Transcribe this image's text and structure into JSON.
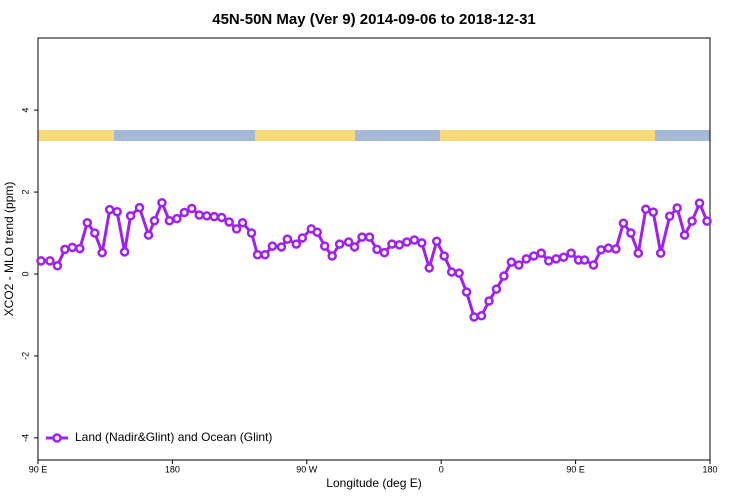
{
  "chart_data": {
    "type": "line",
    "title": "45N-50N May (Ver 9)   2014-09-06 to 2018-12-31",
    "x_label": "Longitude (deg E)",
    "y_label": "XCO2 - MLO trend (ppm)",
    "xlim": [
      90,
      540
    ],
    "xticks": [
      {
        "value": 90,
        "label": "90 E"
      },
      180,
      {
        "value": 270,
        "label": "90 W"
      },
      {
        "value": 360,
        "label": "0"
      },
      {
        "value": 450,
        "label": "90 E"
      },
      {
        "value": 540,
        "label": "180"
      }
    ],
    "ylim": [
      -4.54,
      5.76
    ],
    "yticks": [
      -4,
      -2,
      0,
      2,
      4
    ],
    "legend": "bottom-left",
    "x": [
      92,
      98,
      103,
      108,
      113,
      118,
      123,
      128,
      133,
      138,
      143,
      148,
      152,
      158,
      164,
      168,
      173,
      178,
      183,
      188,
      193,
      198,
      203,
      208,
      213,
      218,
      223,
      227,
      233,
      237,
      242,
      247,
      253,
      257,
      263,
      267,
      273,
      277,
      282,
      287,
      292,
      298,
      302,
      307,
      312,
      317,
      322,
      327,
      332,
      337,
      342,
      347,
      352,
      357,
      362,
      367,
      372,
      377,
      382,
      387,
      392,
      397,
      402,
      407,
      412,
      417,
      422,
      427,
      432,
      437,
      442,
      447,
      452,
      456,
      462,
      467,
      472,
      477,
      482,
      487,
      492,
      497,
      502,
      507,
      513,
      518,
      523,
      528,
      533,
      538
    ],
    "series": [
      {
        "name": "Land (Nadir&Glint) and Ocean (Glint)",
        "color": "#a020f0",
        "values": [
          0.32,
          0.32,
          0.2,
          0.6,
          0.65,
          0.62,
          1.25,
          1.0,
          0.52,
          1.57,
          1.52,
          0.54,
          1.42,
          1.62,
          0.95,
          1.3,
          1.74,
          1.3,
          1.35,
          1.5,
          1.6,
          1.44,
          1.42,
          1.4,
          1.38,
          1.27,
          1.1,
          1.25,
          1.0,
          0.47,
          0.47,
          0.68,
          0.66,
          0.85,
          0.73,
          0.88,
          1.1,
          1.02,
          0.68,
          0.44,
          0.73,
          0.78,
          0.66,
          0.9,
          0.9,
          0.6,
          0.52,
          0.73,
          0.71,
          0.78,
          0.83,
          0.76,
          0.15,
          0.8,
          0.44,
          0.05,
          0.02,
          -0.44,
          -1.05,
          -1.02,
          -0.66,
          -0.37,
          -0.05,
          0.29,
          0.22,
          0.37,
          0.44,
          0.51,
          0.32,
          0.37,
          0.41,
          0.51,
          0.34,
          0.34,
          0.22,
          0.59,
          0.63,
          0.61,
          1.24,
          1.0,
          0.51,
          1.58,
          1.51,
          0.51,
          1.41,
          1.61,
          0.95,
          1.29,
          1.73,
          1.29
        ]
      }
    ]
  }
}
